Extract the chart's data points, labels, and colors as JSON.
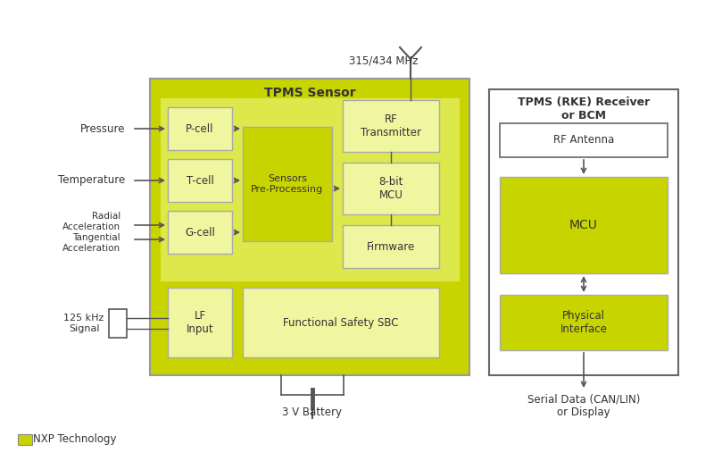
{
  "bg_color": "#ffffff",
  "nxp_green": "#c8d400",
  "nxp_light": "#dde84a",
  "box_outline": "#888888",
  "text_color": "#333333",
  "arrow_color": "#555555",
  "title": "TPMS Sensor",
  "title2": "TPMS (RKE) Receiver\nor BCM",
  "freq_label": "315/434 MHz",
  "battery_label": "3 V Battery",
  "serial_label": "Serial Data (CAN/LIN)\nor Display",
  "legend_label": "NXP Technology",
  "figsize": [
    8.0,
    5.16
  ],
  "dpi": 100
}
